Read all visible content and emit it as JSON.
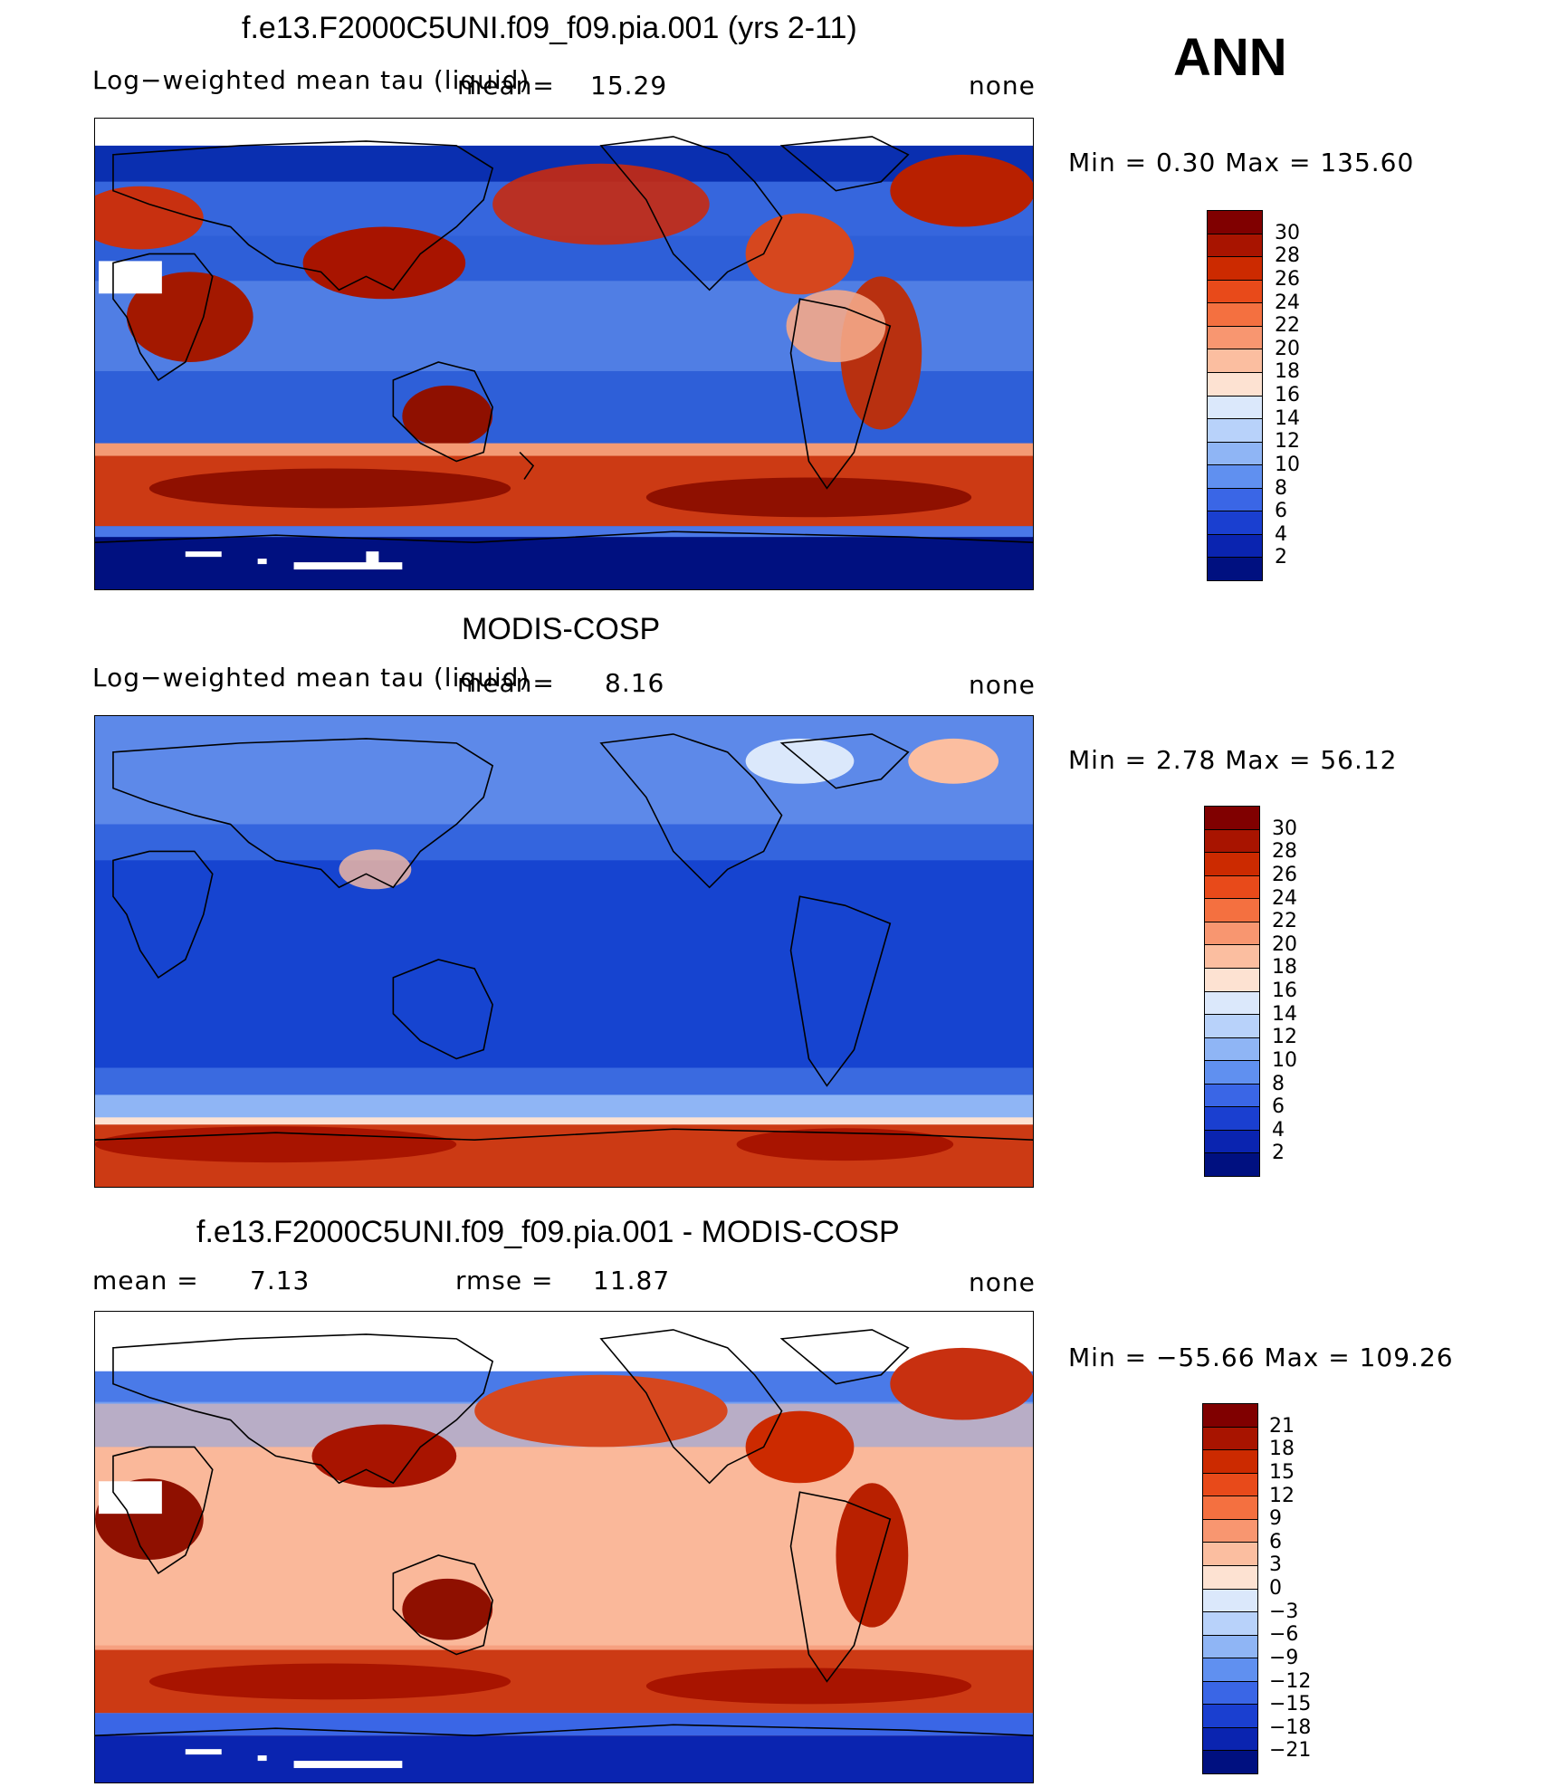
{
  "season": "ANN",
  "panels": [
    {
      "title": "f.e13.F2000C5UNI.f09_f09.pia.001 (yrs 2-11)",
      "variable": "Log−weighted mean tau (liquid)",
      "mean_text": "mean=",
      "mean_value": "15.29",
      "units": "none",
      "minmax": "Min  =    0.30  Max  =  135.60",
      "colorbar": {
        "labels": [
          "30",
          "28",
          "26",
          "24",
          "22",
          "20",
          "18",
          "16",
          "14",
          "12",
          "10",
          "8",
          "6",
          "4",
          "2"
        ],
        "colors": [
          "#800000",
          "#a81400",
          "#cc2a00",
          "#e84a1a",
          "#f47040",
          "#f89670",
          "#fbbea0",
          "#fde2d2",
          "#dbe8fb",
          "#b8d2fa",
          "#8fb5f5",
          "#6090f0",
          "#3a66e6",
          "#1a3fd0",
          "#0a24b0",
          "#001080"
        ]
      }
    },
    {
      "title": "MODIS-COSP",
      "variable": "Log−weighted mean tau (liquid)",
      "mean_text": "mean=",
      "mean_value": "8.16",
      "units": "none",
      "minmax": "Min  =    2.78  Max  =   56.12",
      "colorbar": {
        "labels": [
          "30",
          "28",
          "26",
          "24",
          "22",
          "20",
          "18",
          "16",
          "14",
          "12",
          "10",
          "8",
          "6",
          "4",
          "2"
        ],
        "colors": [
          "#800000",
          "#a81400",
          "#cc2a00",
          "#e84a1a",
          "#f47040",
          "#f89670",
          "#fbbea0",
          "#fde2d2",
          "#dbe8fb",
          "#b8d2fa",
          "#8fb5f5",
          "#6090f0",
          "#3a66e6",
          "#1a3fd0",
          "#0a24b0",
          "#001080"
        ]
      }
    },
    {
      "title": "f.e13.F2000C5UNI.f09_f09.pia.001 - MODIS-COSP",
      "mean_text": "mean  =",
      "mean_value": "7.13",
      "rmse_text": "rmse  =",
      "rmse_value": "11.87",
      "units": "none",
      "minmax": "Min  = −55.66  Max  =  109.26",
      "colorbar": {
        "labels": [
          "21",
          "18",
          "15",
          "12",
          "9",
          "6",
          "3",
          "0",
          "−3",
          "−6",
          "−9",
          "−12",
          "−15",
          "−18",
          "−21"
        ],
        "colors": [
          "#800000",
          "#a81400",
          "#cc2a00",
          "#e84a1a",
          "#f47040",
          "#f89670",
          "#fbbea0",
          "#fde2d2",
          "#dbe8fb",
          "#b8d2fa",
          "#8fb5f5",
          "#6090f0",
          "#3a66e6",
          "#1a3fd0",
          "#0a24b0",
          "#001080"
        ]
      }
    }
  ]
}
